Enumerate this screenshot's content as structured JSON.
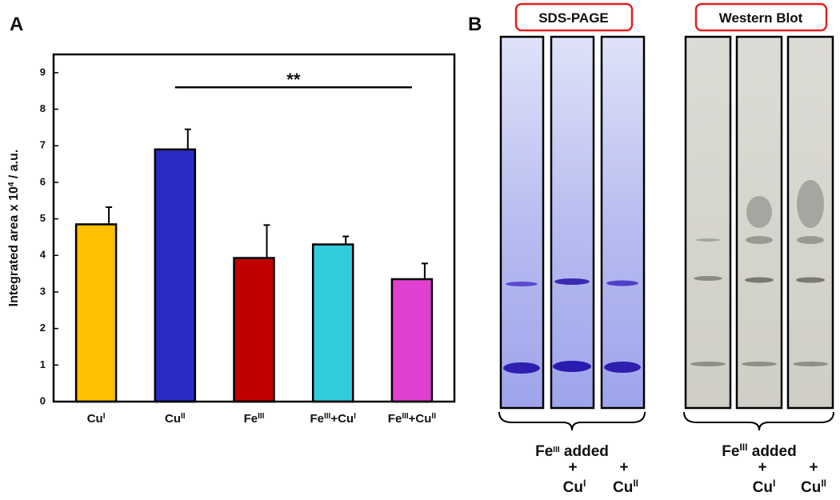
{
  "chart_data": {
    "type": "bar",
    "panel_label": "A",
    "ylabel": [
      "Integrated area x 10",
      "4",
      " / a.u."
    ],
    "categories": [
      [
        "Cu",
        "I"
      ],
      [
        "Cu",
        "II"
      ],
      [
        "Fe",
        "III"
      ],
      [
        "Fe",
        "III",
        "+Cu",
        "I"
      ],
      [
        "Fe",
        "III",
        "+Cu",
        "II"
      ]
    ],
    "values": [
      4.85,
      6.9,
      3.93,
      4.3,
      3.35
    ],
    "errors": [
      0.47,
      0.55,
      0.9,
      0.22,
      0.43
    ],
    "colors": [
      "#ffc000",
      "#2b2bc4",
      "#c00000",
      "#33ccdd",
      "#e040d0"
    ],
    "ylim": [
      0,
      9.5
    ],
    "yticks": [
      0,
      1,
      2,
      3,
      4,
      5,
      6,
      7,
      8,
      9
    ],
    "significance": {
      "label": "**",
      "y": 8.6
    }
  },
  "panel_b": {
    "label": "B",
    "sds_title": "SDS-PAGE",
    "wb_title": "Western Blot",
    "caption": {
      "line1": [
        "Fe",
        "III",
        " added"
      ],
      "plus": "+",
      "cu1": [
        "Cu",
        "I"
      ],
      "cu2": [
        "Cu",
        "II"
      ]
    }
  }
}
